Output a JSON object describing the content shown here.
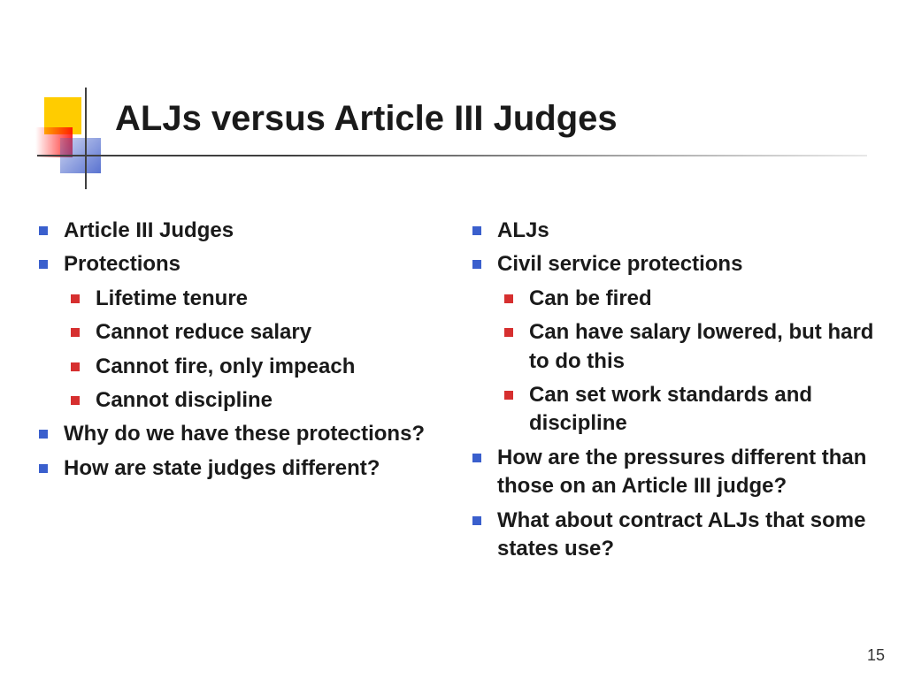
{
  "slide": {
    "title": "ALJs versus Article III Judges",
    "page_number": "15",
    "colors": {
      "bullet_level1": "#3a5fcd",
      "bullet_level2": "#d62f2f",
      "logo_yellow": "#ffcc00",
      "logo_red": "#ff0000",
      "logo_blue": "#3c5ac8",
      "text": "#1a1a1a",
      "background": "#ffffff"
    },
    "typography": {
      "title_fontsize": 40,
      "body_fontsize": 24,
      "font_family": "Arial",
      "weight": "bold"
    },
    "left_column": {
      "items": [
        {
          "level": 1,
          "text": "Article III Judges"
        },
        {
          "level": 1,
          "text": "Protections"
        },
        {
          "level": 2,
          "text": "Lifetime tenure"
        },
        {
          "level": 2,
          "text": "Cannot reduce salary"
        },
        {
          "level": 2,
          "text": "Cannot fire, only impeach"
        },
        {
          "level": 2,
          "text": "Cannot discipline"
        },
        {
          "level": 1,
          "text": "Why do we have these protections?"
        },
        {
          "level": 1,
          "text": "How are state judges different?"
        }
      ]
    },
    "right_column": {
      "items": [
        {
          "level": 1,
          "text": "ALJs"
        },
        {
          "level": 1,
          "text": "Civil service protections"
        },
        {
          "level": 2,
          "text": "Can be fired"
        },
        {
          "level": 2,
          "text": "Can have salary lowered, but hard to do this"
        },
        {
          "level": 2,
          "text": "Can set work standards and discipline"
        },
        {
          "level": 1,
          "text": "How are the pressures different than those on an Article III judge?"
        },
        {
          "level": 1,
          "text": "What about contract ALJs that some states use?"
        }
      ]
    }
  }
}
